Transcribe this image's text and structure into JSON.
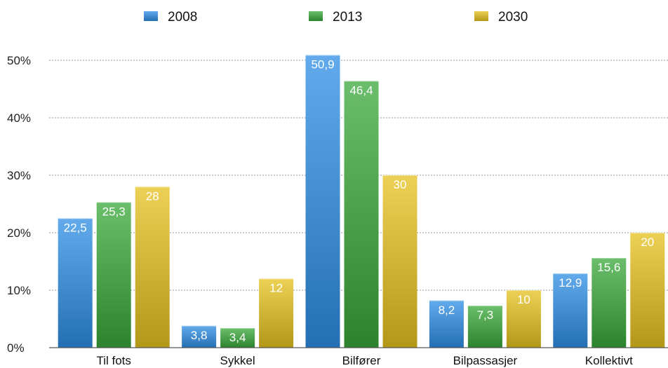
{
  "chart_data": {
    "type": "bar",
    "categories": [
      "Til fots",
      "Sykkel",
      "Bilfører",
      "Bilpassasjer",
      "Kollektivt"
    ],
    "series": [
      {
        "name": "2008",
        "values": [
          22.5,
          3.8,
          50.9,
          8.2,
          12.9
        ],
        "labels": [
          "22,5",
          "3,8",
          "50,9",
          "8,2",
          "12,9"
        ],
        "color": "#2e8ee6"
      },
      {
        "name": "2013",
        "values": [
          25.3,
          3.4,
          46.4,
          7.3,
          15.6
        ],
        "labels": [
          "25,3",
          "3,4",
          "46,4",
          "7,3",
          "15,6"
        ],
        "color": "#3aa83a"
      },
      {
        "name": "2030",
        "values": [
          28,
          12,
          30,
          10,
          20
        ],
        "labels": [
          "28",
          "12",
          "30",
          "10",
          "20"
        ],
        "color": "#e6c21e"
      }
    ],
    "yticks": [
      "0%",
      "10%",
      "20%",
      "30%",
      "40%",
      "50%"
    ],
    "ylim": [
      0,
      50
    ],
    "grid": true,
    "legend_position": "top"
  }
}
